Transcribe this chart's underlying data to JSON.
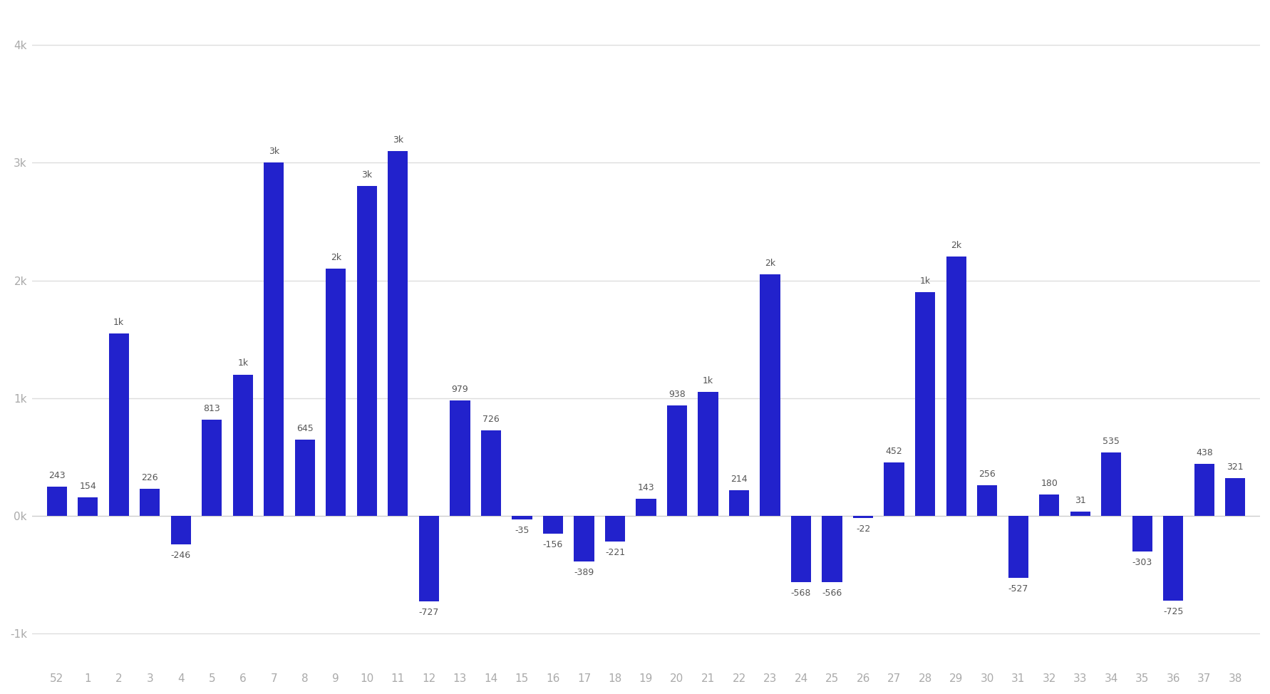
{
  "categories": [
    "52",
    "1",
    "2",
    "3",
    "4",
    "5",
    "6",
    "7",
    "8",
    "9",
    "10",
    "11",
    "12",
    "13",
    "14",
    "15",
    "16",
    "17",
    "18",
    "19",
    "20",
    "21",
    "22",
    "23",
    "24",
    "25",
    "26",
    "27",
    "28",
    "29",
    "30",
    "31",
    "32",
    "33",
    "34",
    "35",
    "36",
    "37",
    "38"
  ],
  "values": [
    243,
    154,
    1550,
    226,
    -246,
    813,
    1200,
    3000,
    645,
    2100,
    2800,
    3100,
    -727,
    979,
    726,
    -35,
    -156,
    -389,
    -221,
    143,
    938,
    1050,
    214,
    2050,
    -568,
    -566,
    -22,
    452,
    1900,
    2200,
    256,
    -527,
    180,
    31,
    535,
    -303,
    -725,
    438,
    321
  ],
  "bar_color": "#2222cc",
  "background_color": "#ffffff",
  "plot_bg_color": "#ffffff",
  "grid_color": "#dddddd",
  "ylim": [
    -1300,
    4300
  ],
  "yticks": [
    -1000,
    0,
    1000,
    2000,
    3000,
    4000
  ],
  "ytick_labels": [
    "-1k",
    "0k",
    "1k",
    "2k",
    "3k",
    "4k"
  ],
  "label_fontsize": 9,
  "tick_fontsize": 11,
  "label_color": "#aaaaaa",
  "spine_color": "#cccccc"
}
